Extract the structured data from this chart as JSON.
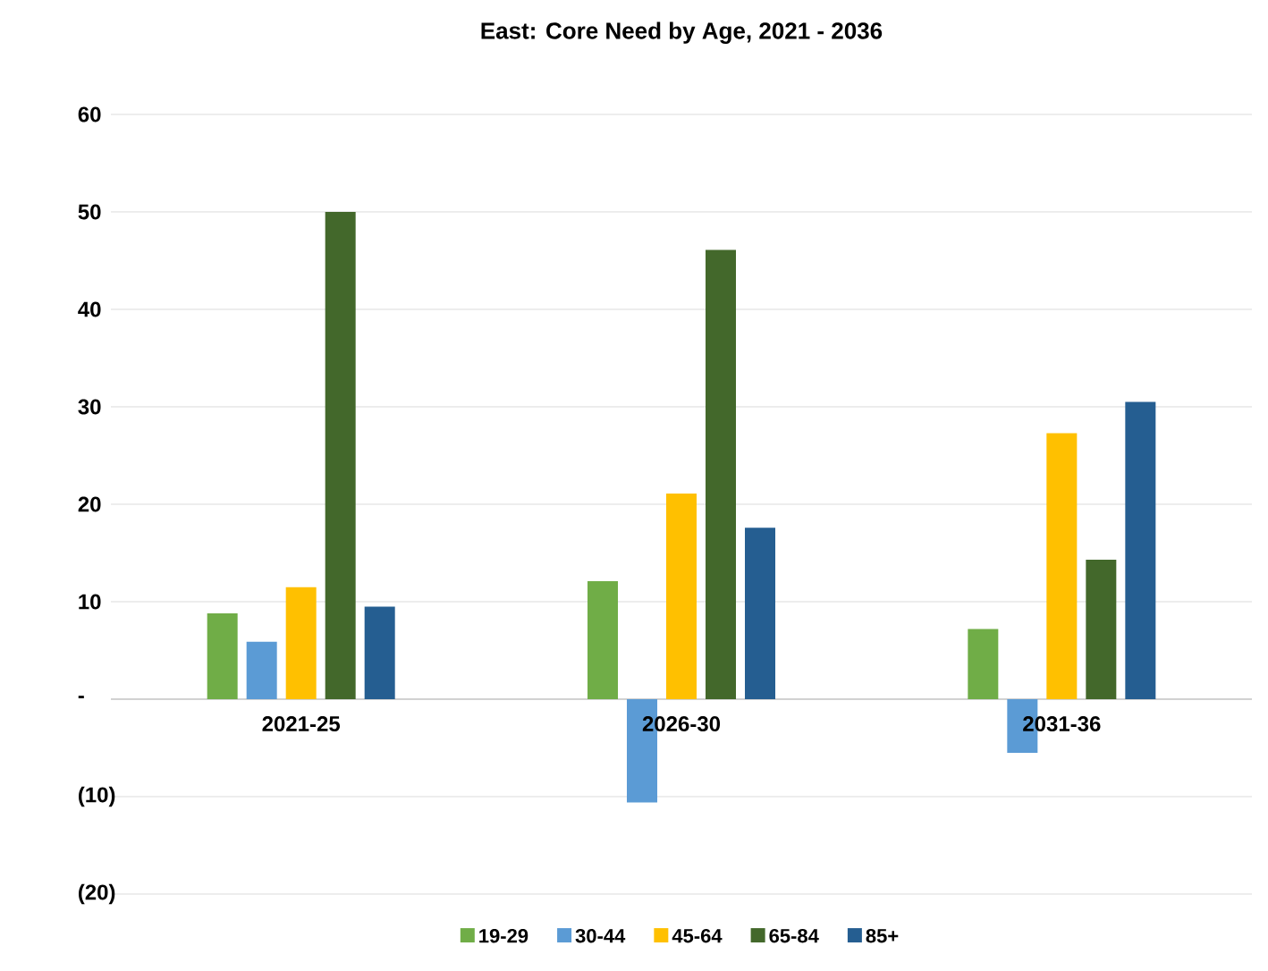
{
  "chart_data": {
    "type": "bar",
    "title": "East:  Core Need by Age, 2021 - 2036",
    "categories": [
      "2021-25",
      "2026-30",
      "2031-36"
    ],
    "series": [
      {
        "name": "19-29",
        "color": "#70ad47",
        "values": [
          8.8,
          12.1,
          7.2
        ]
      },
      {
        "name": "30-44",
        "color": "#5b9bd5",
        "values": [
          5.9,
          -10.6,
          -5.5
        ]
      },
      {
        "name": "45-64",
        "color": "#ffc000",
        "values": [
          11.5,
          21.1,
          27.3
        ]
      },
      {
        "name": "65-84",
        "color": "#43682b",
        "values": [
          50,
          46.1,
          14.3
        ]
      },
      {
        "name": "85+",
        "color": "#255e91",
        "values": [
          9.5,
          17.6,
          30.5
        ]
      }
    ],
    "ylim": [
      -20,
      60
    ],
    "yticks": [
      {
        "value": -20,
        "label": "(20)"
      },
      {
        "value": -10,
        "label": "(10)"
      },
      {
        "value": 0,
        "label": "-"
      },
      10,
      20,
      30,
      40,
      50,
      60
    ],
    "grid": "y",
    "legend": "bottom"
  }
}
